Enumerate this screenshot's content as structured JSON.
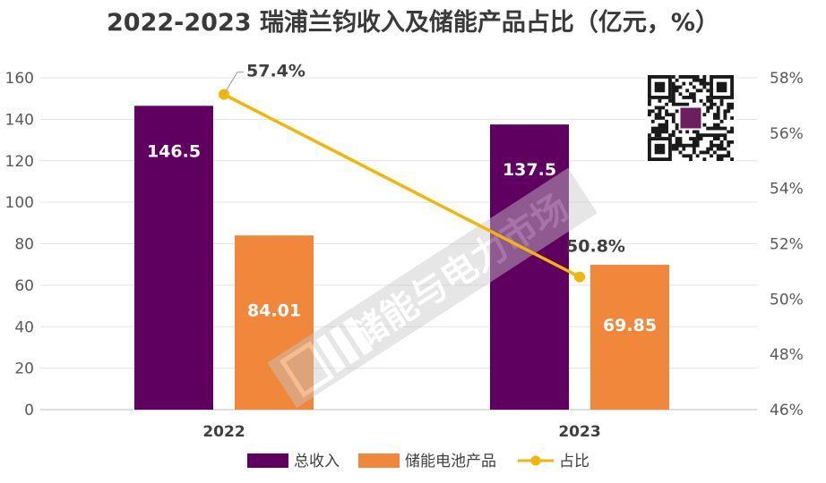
{
  "chart_data": {
    "type": "bar",
    "title": "2022-2023 瑞浦兰钧收入及储能产品占比（亿元，%）",
    "categories": [
      "2022",
      "2023"
    ],
    "series": [
      {
        "name": "总收入",
        "type": "bar",
        "axis": "left",
        "color": "#5f0060",
        "values": [
          146.5,
          137.5
        ],
        "labels": [
          "146.5",
          "137.5"
        ]
      },
      {
        "name": "储能电池产品",
        "type": "bar",
        "axis": "left",
        "color": "#f0873a",
        "values": [
          84.01,
          69.85
        ],
        "labels": [
          "84.01",
          "69.85"
        ]
      },
      {
        "name": "占比",
        "type": "line",
        "axis": "right",
        "color": "#f2b705",
        "values": [
          57.4,
          50.8
        ],
        "labels": [
          "57.4%",
          "50.8%"
        ]
      }
    ],
    "y_left": {
      "min": 0,
      "max": 160,
      "ticks": [
        0,
        20,
        40,
        60,
        80,
        100,
        120,
        140,
        160
      ]
    },
    "y_right": {
      "min": 46,
      "max": 58,
      "ticks": [
        "46%",
        "48%",
        "50%",
        "52%",
        "54%",
        "56%",
        "58%"
      ]
    },
    "legend_position": "bottom",
    "grid": true
  },
  "watermark": {
    "text": "储能与电力市场"
  }
}
